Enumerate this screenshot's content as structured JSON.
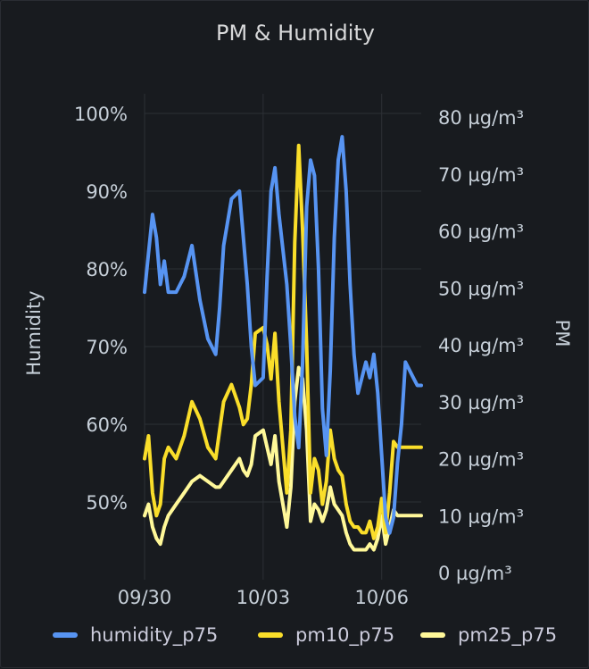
{
  "panel": {
    "title": "PM & Humidity"
  },
  "colors": {
    "humidity": "#5794f2",
    "pm10": "#fade2a",
    "pm25": "#fff899",
    "grid": "#2c3035"
  },
  "chart_data": {
    "type": "line",
    "title": "PM & Humidity",
    "x_ticks": [
      "09/30",
      "10/03",
      "10/06"
    ],
    "x_range": [
      "09/30 00:00",
      "10/07 00:00"
    ],
    "left_axis": {
      "label": "Humidity",
      "ticks": [
        "100%",
        "90%",
        "80%",
        "70%",
        "60%",
        "50%"
      ],
      "range": [
        40,
        100
      ]
    },
    "right_axis": {
      "label": "PM",
      "ticks": [
        "80 µg/m³",
        "70 µg/m³",
        "60 µg/m³",
        "50 µg/m³",
        "40 µg/m³",
        "30 µg/m³",
        "20 µg/m³",
        "10 µg/m³",
        "0 µg/m³"
      ],
      "range": [
        0,
        80
      ]
    },
    "grid": true,
    "legend_position": "bottom",
    "series": [
      {
        "name": "humidity_p75",
        "axis": "left",
        "x_days": [
          0,
          0.1,
          0.2,
          0.3,
          0.4,
          0.5,
          0.6,
          0.8,
          1.0,
          1.2,
          1.4,
          1.6,
          1.8,
          1.9,
          2.0,
          2.2,
          2.4,
          2.5,
          2.6,
          2.7,
          2.8,
          3.0,
          3.1,
          3.2,
          3.3,
          3.4,
          3.6,
          3.7,
          3.8,
          3.9,
          4.0,
          4.1,
          4.2,
          4.3,
          4.4,
          4.5,
          4.6,
          4.7,
          4.8,
          4.9,
          5.0,
          5.1,
          5.2,
          5.3,
          5.4,
          5.5,
          5.6,
          5.7,
          5.8,
          5.9,
          6.0,
          6.1,
          6.2,
          6.3,
          6.4,
          6.5,
          6.6,
          6.7,
          6.8,
          6.9,
          7.0
        ],
        "values": [
          77,
          82,
          87,
          84,
          78,
          81,
          77,
          77,
          79,
          83,
          76,
          71,
          69,
          75,
          83,
          89,
          90,
          84,
          78,
          70,
          65,
          66,
          79,
          90,
          93,
          87,
          78,
          70,
          61,
          57,
          68,
          88,
          94,
          92,
          80,
          62,
          56,
          67,
          84,
          94,
          97,
          90,
          78,
          69,
          64,
          66,
          68,
          66,
          69,
          64,
          56,
          48,
          46,
          48,
          55,
          60,
          68,
          67,
          66,
          65,
          65
        ]
      },
      {
        "name": "pm10_p75",
        "axis": "right",
        "x_days": [
          0,
          0.1,
          0.2,
          0.3,
          0.4,
          0.5,
          0.6,
          0.8,
          1.0,
          1.2,
          1.4,
          1.6,
          1.8,
          1.9,
          2.0,
          2.2,
          2.4,
          2.5,
          2.6,
          2.7,
          2.8,
          3.0,
          3.1,
          3.2,
          3.3,
          3.4,
          3.6,
          3.7,
          3.8,
          3.9,
          4.0,
          4.1,
          4.2,
          4.3,
          4.4,
          4.5,
          4.6,
          4.7,
          4.8,
          4.9,
          5.0,
          5.1,
          5.2,
          5.3,
          5.4,
          5.5,
          5.6,
          5.7,
          5.8,
          5.9,
          6.0,
          6.1,
          6.2,
          6.3,
          6.4,
          6.5,
          6.6,
          6.7,
          6.8,
          6.9,
          7.0
        ],
        "values": [
          20,
          24,
          14,
          10,
          12,
          20,
          22,
          20,
          24,
          30,
          27,
          22,
          20,
          25,
          30,
          33,
          29,
          26,
          27,
          33,
          42,
          43,
          40,
          34,
          42,
          30,
          14,
          25,
          58,
          75,
          60,
          40,
          14,
          20,
          18,
          12,
          16,
          25,
          20,
          18,
          17,
          12,
          9,
          8,
          8,
          7,
          7,
          9,
          6,
          8,
          13,
          7,
          14,
          23,
          22,
          22,
          22,
          22,
          22,
          22,
          22
        ]
      },
      {
        "name": "pm25_p75",
        "axis": "right",
        "x_days": [
          0,
          0.1,
          0.2,
          0.3,
          0.4,
          0.5,
          0.6,
          0.8,
          1.0,
          1.2,
          1.4,
          1.6,
          1.8,
          1.9,
          2.0,
          2.2,
          2.4,
          2.5,
          2.6,
          2.7,
          2.8,
          3.0,
          3.1,
          3.2,
          3.3,
          3.4,
          3.6,
          3.7,
          3.8,
          3.9,
          4.0,
          4.1,
          4.2,
          4.3,
          4.4,
          4.5,
          4.6,
          4.7,
          4.8,
          4.9,
          5.0,
          5.1,
          5.2,
          5.3,
          5.4,
          5.5,
          5.6,
          5.7,
          5.8,
          5.9,
          6.0,
          6.1,
          6.2,
          6.3,
          6.4,
          6.5,
          6.6,
          6.7,
          6.8,
          6.9,
          7.0
        ],
        "values": [
          10,
          12,
          8,
          6,
          5,
          8,
          10,
          12,
          14,
          16,
          17,
          16,
          15,
          15,
          16,
          18,
          20,
          18,
          17,
          19,
          24,
          25,
          22,
          19,
          24,
          16,
          8,
          15,
          30,
          36,
          34,
          25,
          9,
          12,
          11,
          9,
          11,
          15,
          12,
          11,
          10,
          7,
          5,
          4,
          4,
          4,
          4,
          5,
          4,
          6,
          10,
          5,
          8,
          11,
          10,
          10,
          10,
          10,
          10,
          10,
          10
        ]
      }
    ]
  }
}
